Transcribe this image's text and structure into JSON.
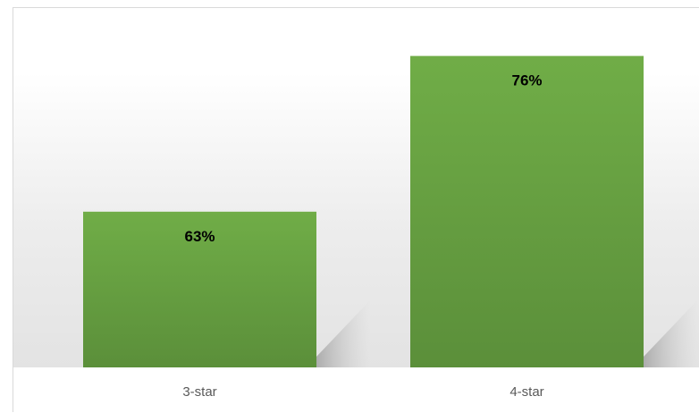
{
  "chart_data": {
    "type": "bar",
    "title": "",
    "xlabel": "",
    "ylabel": "",
    "categories": [
      "3-star",
      "4-star"
    ],
    "values": [
      63,
      76
    ],
    "data_labels": [
      "63%",
      "76%"
    ],
    "unit": "%",
    "ylim": [
      50,
      80
    ],
    "grid": false,
    "legend": "none",
    "bar_color_top": "#70ad47",
    "bar_color_bottom": "#5b8f3a",
    "background_top": "#ffffff",
    "background_bottom": "#e3e3e3",
    "label_color": "#000000",
    "category_label_color": "#595959",
    "border_color": "#d9d9d9"
  }
}
